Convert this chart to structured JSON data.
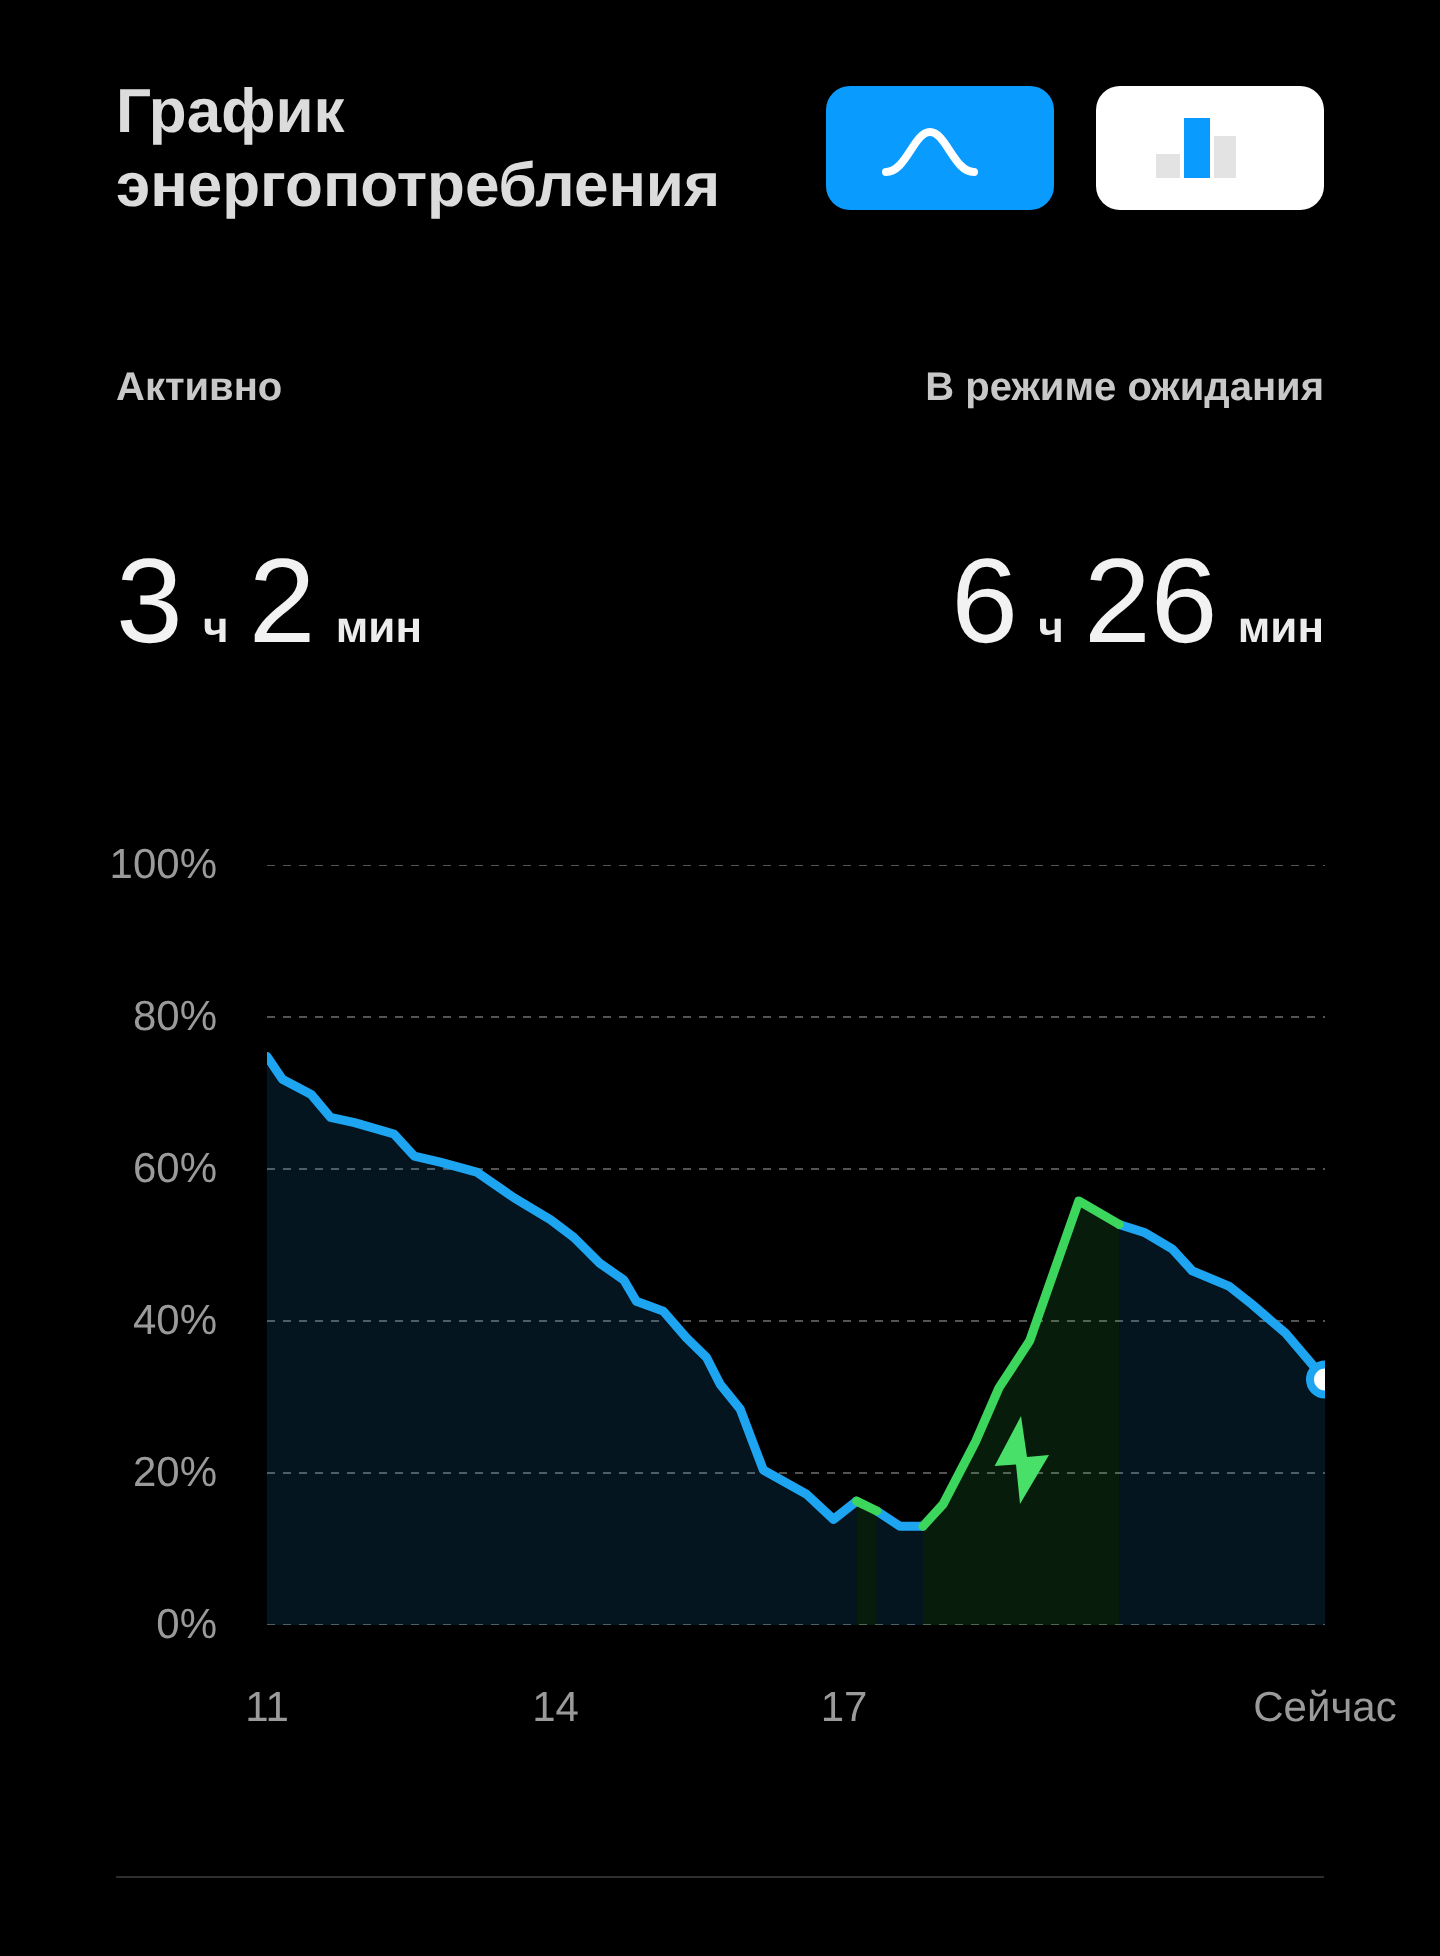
{
  "chart_data": {
    "type": "area",
    "title": "График энергопотребления",
    "annotations": [
      "Активно",
      "В режиме ожидания",
      "3 ч 2 мин",
      "6 ч 26 мин"
    ],
    "xlim": [
      11,
      22
    ],
    "xticks": [
      11,
      14,
      17,
      {
        "value": 22,
        "label": "Сейчас"
      }
    ],
    "ylim": [
      0,
      100
    ],
    "yticks": [
      {
        "value": 0,
        "label": "0%"
      },
      {
        "value": 20,
        "label": "20%"
      },
      {
        "value": 40,
        "label": "40%"
      },
      {
        "value": 60,
        "label": "60%"
      },
      {
        "value": 80,
        "label": "80%"
      },
      {
        "value": 100,
        "label": "100%"
      }
    ],
    "grid": "y",
    "series": [
      {
        "color": "#1da5f2",
        "x": [
          11.0,
          11.16,
          11.46,
          11.66,
          11.91,
          12.32,
          12.53,
          12.8,
          13.18,
          13.57,
          13.95,
          14.19,
          14.46,
          14.71,
          14.84,
          15.12,
          15.36,
          15.57,
          15.71,
          15.92,
          16.16,
          16.61,
          16.89,
          17.13,
          17.2,
          17.34,
          17.58,
          17.82,
          18.5,
          19.86,
          20.13,
          20.41,
          20.62,
          21.0,
          21.24,
          21.59,
          22.0
        ],
        "values": [
          74.8,
          71.8,
          69.8,
          66.8,
          66.1,
          64.6,
          61.7,
          60.9,
          59.6,
          56.2,
          53.3,
          51.0,
          47.6,
          45.4,
          42.6,
          41.3,
          37.8,
          35.2,
          31.7,
          28.4,
          20.4,
          17.2,
          13.9,
          16.3,
          null,
          15.0,
          13.0,
          13.0,
          null,
          52.7,
          51.6,
          49.5,
          46.6,
          44.6,
          42.2,
          38.4,
          32.3
        ]
      },
      {
        "color": "#3dd65c",
        "x": [
          17.13,
          17.34,
          17.5,
          17.82,
          18.03,
          18.37,
          18.61,
          18.93,
          19.44,
          19.86
        ],
        "values": [
          16.3,
          15.0,
          null,
          13.0,
          15.9,
          24.2,
          31.2,
          37.4,
          55.8,
          52.7
        ]
      },
      {
        "type": "scatter",
        "color": "#1da5f2",
        "x": [
          22.0
        ],
        "values": [
          32.3
        ]
      }
    ]
  }
}
